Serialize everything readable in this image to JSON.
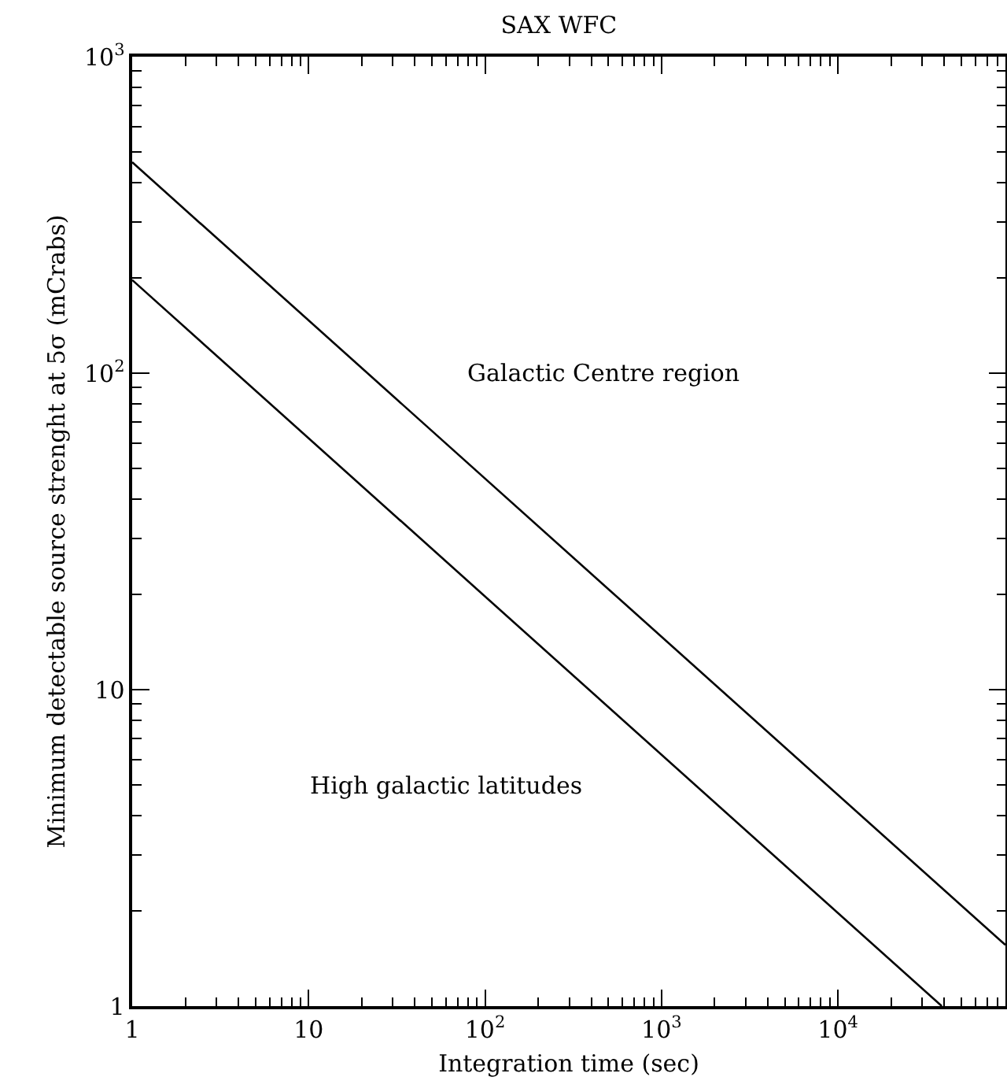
{
  "chart_data": {
    "type": "line",
    "title": "SAX WFC",
    "xlabel": "Integration time (sec)",
    "ylabel": "Minimum detectable source strenght at 5σ (mCrabs)",
    "series": [
      {
        "x": [
          1,
          89000
        ],
        "values": [
          464,
          1.56
        ],
        "color": "#000000"
      },
      {
        "x": [
          1,
          38800
        ],
        "values": [
          197,
          1
        ],
        "color": "#000000"
      }
    ],
    "log": "xy",
    "xlim": [
      1,
      89000
    ],
    "ylim": [
      1,
      1000
    ],
    "xticks": [
      1,
      10,
      {
        "value": 100,
        "label": "10$^{2}$"
      },
      {
        "value": 1000,
        "label": "10$^{3}$"
      },
      {
        "value": 10000,
        "label": "10$^{4}$"
      }
    ],
    "yticks": [
      1,
      10,
      {
        "value": 100,
        "label": "10$^{2}$"
      },
      {
        "value": 1000,
        "label": "10$^{3}$"
      }
    ],
    "annotations": [
      "Galactic Centre region",
      "High galactic latitudes"
    ],
    "grid": false,
    "marker": "none",
    "line_style": "solid"
  }
}
